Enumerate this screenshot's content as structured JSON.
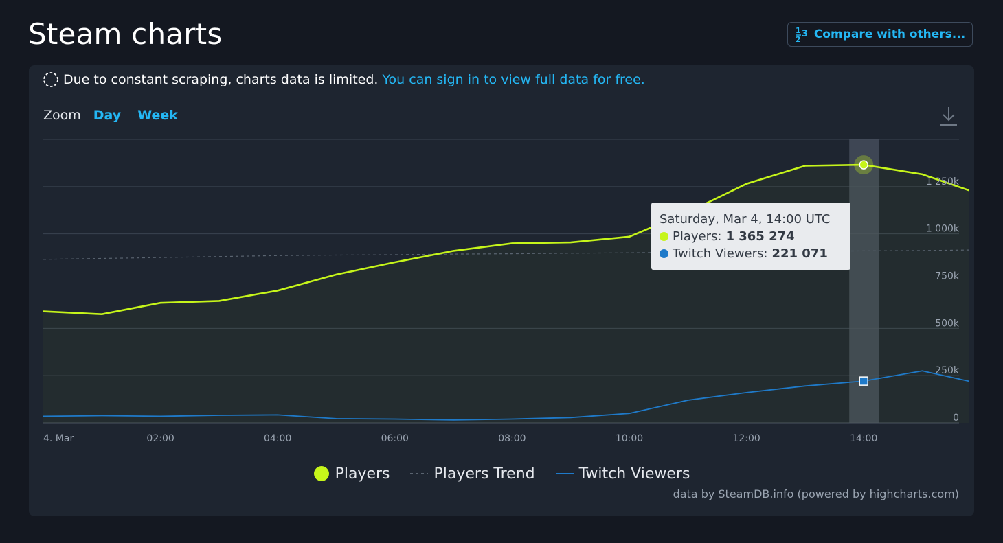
{
  "page": {
    "title": "Steam charts",
    "compare_button": "Compare with others..."
  },
  "notice": {
    "text": "Due to constant scraping, charts data is limited.",
    "link": "You can sign in to view full data for free."
  },
  "zoom": {
    "label": "Zoom",
    "options": [
      "Day",
      "Week"
    ]
  },
  "legend": {
    "players": "Players",
    "trend": "Players Trend",
    "twitch": "Twitch Viewers"
  },
  "credit": "data by SteamDB.info (powered by highcharts.com)",
  "tooltip": {
    "date": "Saturday, Mar 4, 14:00 UTC",
    "players_label": "Players:",
    "players_value": "1 365 274",
    "twitch_label": "Twitch Viewers:",
    "twitch_value": "221 071"
  },
  "colors": {
    "players": "#c6f51a",
    "twitch": "#1f7ac9",
    "trend": "#5a6470",
    "accent": "#24b7f4"
  },
  "chart_data": {
    "type": "line",
    "x_tick_labels": [
      "4. Mar",
      "02:00",
      "04:00",
      "06:00",
      "08:00",
      "10:00",
      "12:00",
      "14:00"
    ],
    "y_tick_labels": [
      "0",
      "250k",
      "500k",
      "750k",
      "1 000k",
      "1 250k"
    ],
    "ylim": [
      0,
      1500000
    ],
    "x_hours": [
      0,
      1,
      2,
      3,
      4,
      5,
      6,
      7,
      8,
      9,
      10,
      11,
      12,
      13,
      14,
      15,
      15.8
    ],
    "series": [
      {
        "name": "Players",
        "values": [
          590000,
          575000,
          635000,
          645000,
          700000,
          785000,
          850000,
          910000,
          950000,
          955000,
          985000,
          1115000,
          1265000,
          1360000,
          1365274,
          1315000,
          1230000
        ]
      },
      {
        "name": "Players Trend",
        "values": [
          865000,
          870000,
          875000,
          880000,
          885000,
          888000,
          890000,
          893000,
          895000,
          898000,
          900000,
          903000,
          905000,
          908000,
          910000,
          912000,
          915000
        ]
      },
      {
        "name": "Twitch Viewers",
        "values": [
          35000,
          38000,
          35000,
          40000,
          42000,
          22000,
          20000,
          15000,
          20000,
          28000,
          50000,
          120000,
          160000,
          195000,
          221071,
          275000,
          220000
        ]
      }
    ],
    "highlighted_x_hour": 14,
    "grid": true
  }
}
